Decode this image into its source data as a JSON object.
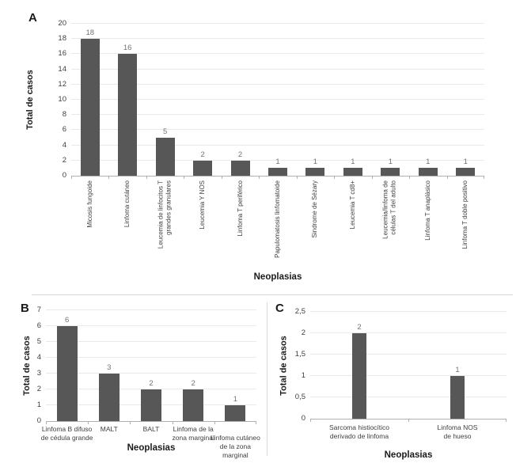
{
  "figure": {
    "bar_color": "#575757",
    "grid_color": "#e9e9e9",
    "axis_color": "#b0b0b0",
    "value_label_color": "#737373",
    "divider_color": "#d9d9d9"
  },
  "chart_data": [
    {
      "type": "bar",
      "panel": "A",
      "xlabel": "Neoplasias",
      "ylabel": "Total de casos",
      "ylim": [
        0,
        20
      ],
      "grid": true,
      "legend": "none",
      "ytick_values": [
        0,
        2,
        4,
        6,
        8,
        10,
        12,
        14,
        16,
        18,
        20
      ],
      "ytick_labels": [
        "0",
        "2",
        "4",
        "6",
        "8",
        "10",
        "12",
        "14",
        "16",
        "18",
        "20"
      ],
      "categories": [
        "Micosis fungoide",
        "Linfoma cutáneo",
        "Leucemia de linfocitos T\ngrandes granulares",
        "Leucemia Y NOS",
        "Linfoma T periférico",
        "Papulomatosis linfomatoide",
        "Sindrome de Sézary",
        "Leucemia T cd8+",
        "Leucemia/linfoma de\ncélulas T del adulto",
        "Linfoma T anaplásico",
        "Linfoma T doble positivo"
      ],
      "values": [
        18,
        16,
        5,
        2,
        2,
        1,
        1,
        1,
        1,
        1,
        1
      ]
    },
    {
      "type": "bar",
      "panel": "B",
      "xlabel": "Neoplasias",
      "ylabel": "Total de casos",
      "ylim": [
        0,
        7
      ],
      "grid": true,
      "legend": "none",
      "ytick_values": [
        0,
        1,
        2,
        3,
        4,
        5,
        6,
        7
      ],
      "ytick_labels": [
        "0",
        "1",
        "2",
        "3",
        "4",
        "5",
        "6",
        "7"
      ],
      "categories": [
        "Linfoma B difuso\nde cédula grande",
        "MALT",
        "BALT",
        "Linfoma de la\nzona marginal",
        "Linfoma cutáneo\nde la zona\nmarginal"
      ],
      "values": [
        6,
        3,
        2,
        2,
        1
      ]
    },
    {
      "type": "bar",
      "panel": "C",
      "xlabel": "Neoplasias",
      "ylabel": "Total de casos",
      "ylim": [
        0,
        2.5
      ],
      "grid": true,
      "legend": "none",
      "ytick_values": [
        0,
        0.5,
        1,
        1.5,
        2,
        2.5
      ],
      "ytick_labels": [
        "0",
        "0,5",
        "1",
        "1,5",
        "2",
        "2,5"
      ],
      "categories": [
        "Sarcoma histiocítico\nderivado de linfoma",
        "Linfoma NOS\nde hueso"
      ],
      "values": [
        2,
        1
      ]
    }
  ]
}
